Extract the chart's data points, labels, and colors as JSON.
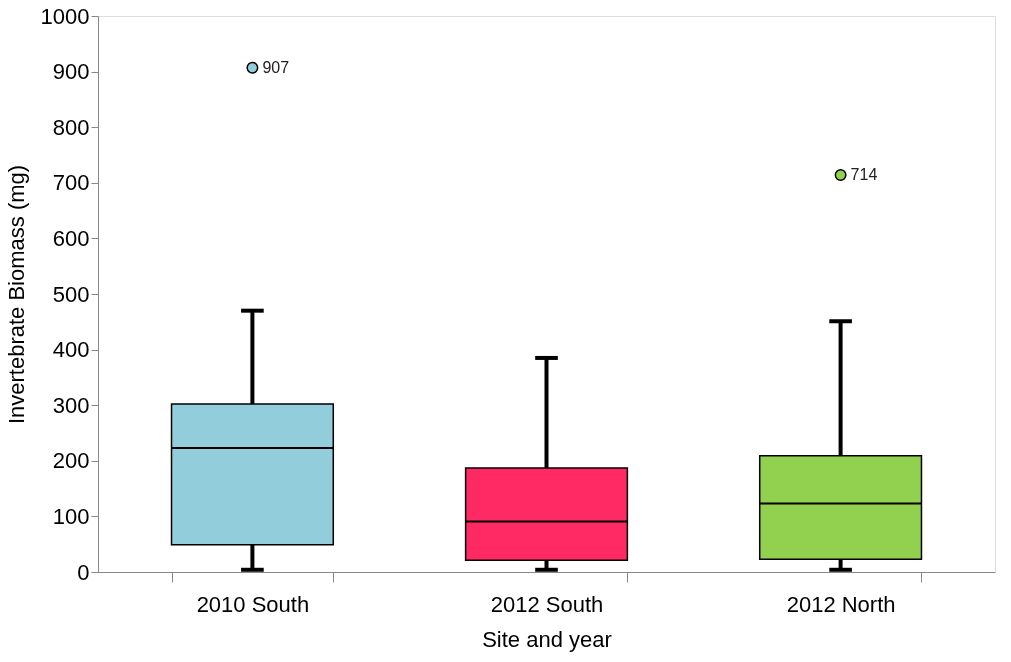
{
  "chart_data": {
    "type": "box",
    "xlabel": "Site and year",
    "ylabel": "Invertebrate Biomass (mg)",
    "categories": [
      "2010 South",
      "2012 South",
      "2012 North"
    ],
    "colors": [
      "#92cddc",
      "#ff2a64",
      "#92d050"
    ],
    "boxes": [
      {
        "low": 4,
        "q1": 49,
        "median": 223,
        "q3": 302,
        "high": 470,
        "outliers": [
          907
        ]
      },
      {
        "low": 4,
        "q1": 21,
        "median": 91,
        "q3": 187,
        "high": 385
      },
      {
        "low": 4,
        "q1": 23,
        "median": 123,
        "q3": 209,
        "high": 451,
        "outliers": [
          714
        ]
      }
    ],
    "annotations": [
      "907",
      "714"
    ],
    "ylim": [
      0,
      1000
    ],
    "yticks": [
      0,
      100,
      200,
      300,
      400,
      500,
      600,
      700,
      800,
      900,
      1000
    ],
    "grid": false
  }
}
